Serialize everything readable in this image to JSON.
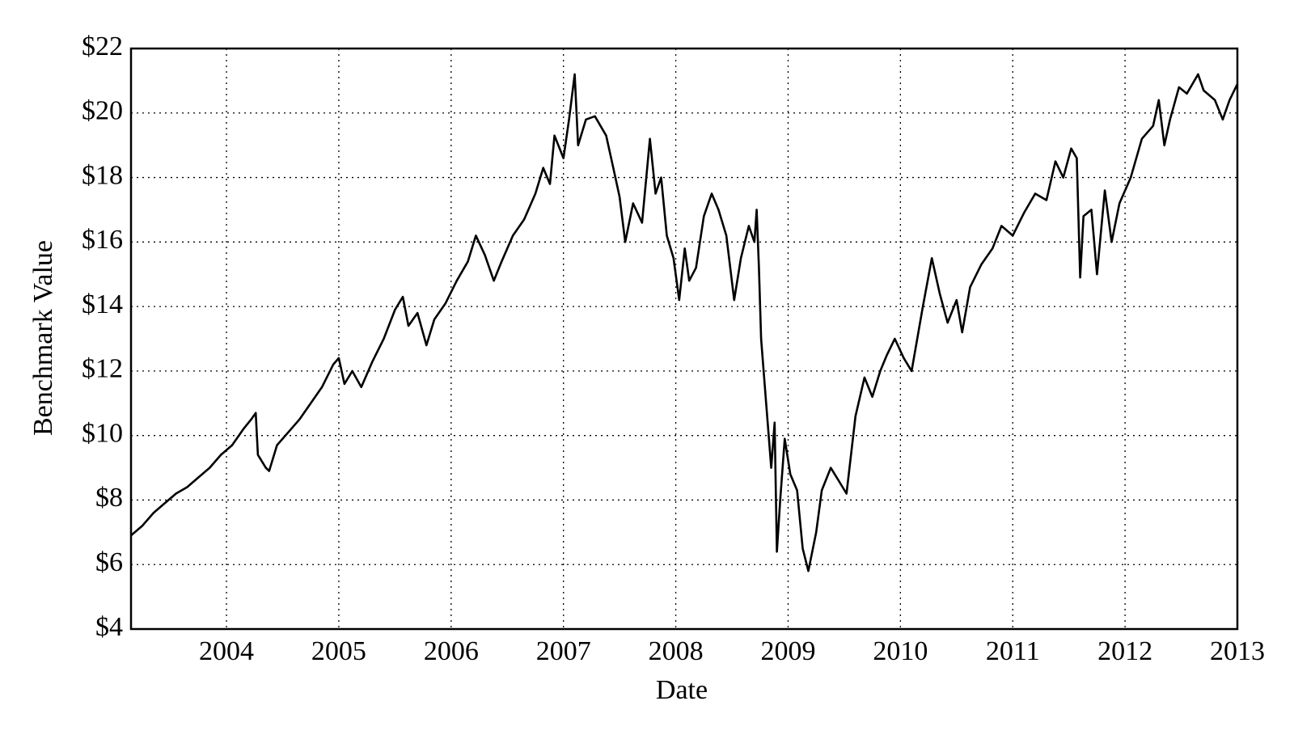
{
  "chart_data": {
    "type": "line",
    "xlabel": "Date",
    "ylabel": "Benchmark Value",
    "x": [
      2003.15,
      2003.25,
      2003.35,
      2003.45,
      2003.55,
      2003.65,
      2003.75,
      2003.85,
      2003.95,
      2004.05,
      2004.15,
      2004.22,
      2004.26,
      2004.28,
      2004.35,
      2004.38,
      2004.45,
      2004.55,
      2004.65,
      2004.75,
      2004.85,
      2004.95,
      2005.0,
      2005.05,
      2005.12,
      2005.2,
      2005.3,
      2005.4,
      2005.5,
      2005.57,
      2005.62,
      2005.7,
      2005.78,
      2005.85,
      2005.95,
      2006.05,
      2006.15,
      2006.22,
      2006.3,
      2006.38,
      2006.45,
      2006.55,
      2006.65,
      2006.75,
      2006.82,
      2006.88,
      2006.92,
      2007.0,
      2007.05,
      2007.1,
      2007.13,
      2007.2,
      2007.28,
      2007.38,
      2007.45,
      2007.5,
      2007.55,
      2007.62,
      2007.7,
      2007.77,
      2007.82,
      2007.87,
      2007.92,
      2007.98,
      2008.03,
      2008.08,
      2008.12,
      2008.18,
      2008.25,
      2008.32,
      2008.38,
      2008.45,
      2008.52,
      2008.58,
      2008.65,
      2008.7,
      2008.72,
      2008.74,
      2008.76,
      2008.8,
      2008.85,
      2008.88,
      2008.9,
      2008.93,
      2008.97,
      2009.02,
      2009.08,
      2009.13,
      2009.18,
      2009.25,
      2009.3,
      2009.38,
      2009.45,
      2009.52,
      2009.6,
      2009.68,
      2009.75,
      2009.82,
      2009.88,
      2009.95,
      2010.03,
      2010.1,
      2010.2,
      2010.28,
      2010.35,
      2010.42,
      2010.5,
      2010.55,
      2010.62,
      2010.72,
      2010.82,
      2010.9,
      2011.0,
      2011.1,
      2011.2,
      2011.3,
      2011.38,
      2011.45,
      2011.52,
      2011.57,
      2011.6,
      2011.63,
      2011.7,
      2011.75,
      2011.82,
      2011.88,
      2011.95,
      2012.05,
      2012.15,
      2012.25,
      2012.3,
      2012.35,
      2012.4,
      2012.48,
      2012.55,
      2012.65,
      2012.7,
      2012.8,
      2012.87,
      2012.93,
      2013.0
    ],
    "series": [
      {
        "name": "Benchmark Value",
        "color": "#000000",
        "values": [
          6.9,
          7.2,
          7.6,
          7.9,
          8.2,
          8.4,
          8.7,
          9.0,
          9.4,
          9.7,
          10.2,
          10.5,
          10.7,
          9.4,
          9.0,
          8.9,
          9.7,
          10.1,
          10.5,
          11.0,
          11.5,
          12.2,
          12.4,
          11.6,
          12.0,
          11.5,
          12.3,
          13.0,
          13.9,
          14.3,
          13.4,
          13.8,
          12.8,
          13.6,
          14.1,
          14.8,
          15.4,
          16.2,
          15.6,
          14.8,
          15.4,
          16.2,
          16.7,
          17.5,
          18.3,
          17.8,
          19.3,
          18.6,
          19.8,
          21.2,
          19.0,
          19.8,
          19.9,
          19.3,
          18.2,
          17.4,
          16.0,
          17.2,
          16.6,
          19.2,
          17.5,
          18.0,
          16.2,
          15.5,
          14.2,
          15.8,
          14.8,
          15.2,
          16.8,
          17.5,
          17.0,
          16.2,
          14.2,
          15.5,
          16.5,
          16.0,
          17.0,
          15.2,
          13.0,
          11.2,
          9.0,
          10.4,
          6.4,
          8.0,
          9.9,
          8.8,
          8.3,
          6.5,
          5.8,
          7.0,
          8.3,
          9.0,
          8.6,
          8.2,
          10.6,
          11.8,
          11.2,
          12.0,
          12.5,
          13.0,
          12.4,
          12.0,
          14.0,
          15.5,
          14.4,
          13.5,
          14.2,
          13.2,
          14.6,
          15.3,
          15.8,
          16.5,
          16.2,
          16.9,
          17.5,
          17.3,
          18.5,
          18.0,
          18.9,
          18.6,
          14.9,
          16.8,
          17.0,
          15.0,
          17.6,
          16.0,
          17.2,
          18.0,
          19.2,
          19.6,
          20.4,
          19.0,
          19.8,
          20.8,
          20.6,
          21.2,
          20.7,
          20.4,
          19.8,
          20.4,
          20.9
        ]
      }
    ],
    "xlim": [
      2003.15,
      2013
    ],
    "xticks": [
      2004,
      2005,
      2006,
      2007,
      2008,
      2009,
      2010,
      2011,
      2012,
      2013
    ],
    "ylim": [
      4,
      22
    ],
    "yticks": [
      {
        "value": 4,
        "label": "$4"
      },
      {
        "value": 6,
        "label": "$6"
      },
      {
        "value": 8,
        "label": "$8"
      },
      {
        "value": 10,
        "label": "$10"
      },
      {
        "value": 12,
        "label": "$12"
      },
      {
        "value": 14,
        "label": "$14"
      },
      {
        "value": 16,
        "label": "$16"
      },
      {
        "value": 18,
        "label": "$18"
      },
      {
        "value": 20,
        "label": "$20"
      },
      {
        "value": 22,
        "label": "$22"
      }
    ],
    "grid": true
  }
}
